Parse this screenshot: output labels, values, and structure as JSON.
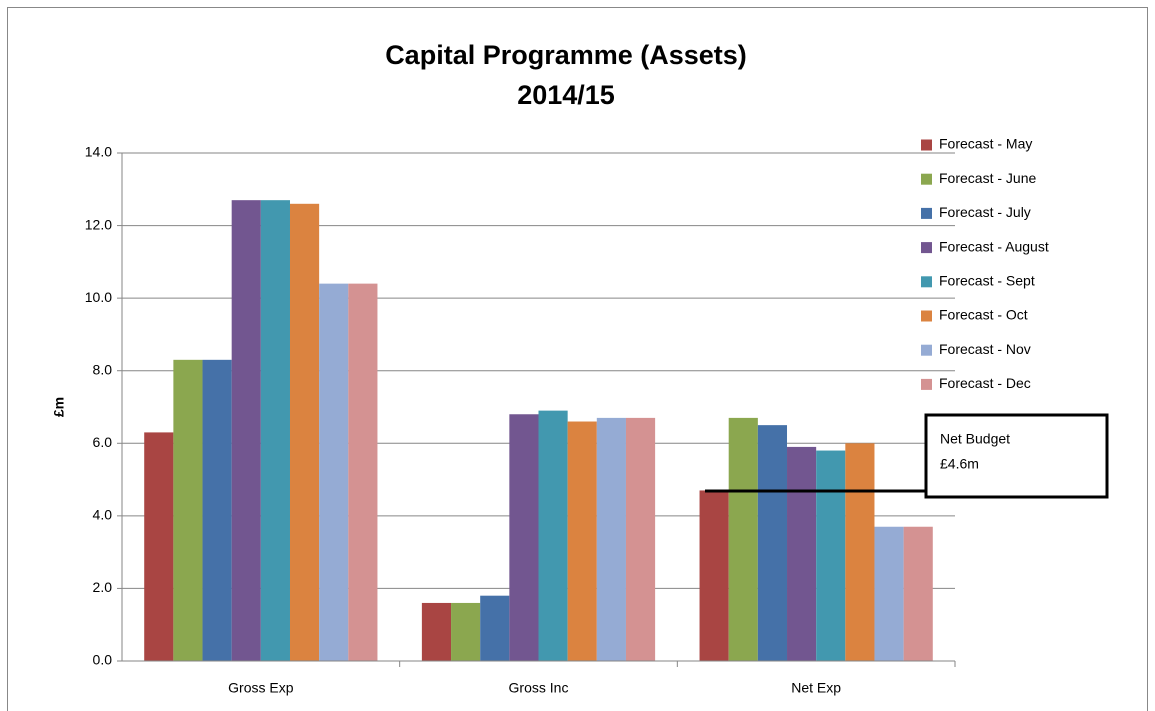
{
  "chart_data": {
    "type": "bar",
    "title": "Capital Programme (Assets)",
    "subtitle": "2014/15",
    "y_label": "£m",
    "annotation": [
      "Net Budget",
      "£4.6m"
    ],
    "categories": [
      "Gross Exp",
      "Gross Inc",
      "Net Exp"
    ],
    "series": [
      {
        "name": "Forecast - May",
        "color": "#a94543",
        "values": [
          6.3,
          1.6,
          4.7
        ]
      },
      {
        "name": "Forecast - June",
        "color": "#8ba74f",
        "values": [
          8.3,
          1.6,
          6.7
        ]
      },
      {
        "name": "Forecast - July",
        "color": "#4571a8",
        "values": [
          8.3,
          1.8,
          6.5
        ]
      },
      {
        "name": "Forecast - August",
        "color": "#725690",
        "values": [
          12.7,
          6.8,
          5.9
        ]
      },
      {
        "name": "Forecast - Sept",
        "color": "#4298af",
        "values": [
          12.7,
          6.9,
          5.8
        ]
      },
      {
        "name": "Forecast - Oct",
        "color": "#db8340",
        "values": [
          12.6,
          6.6,
          6.0
        ]
      },
      {
        "name": "Forecast - Nov",
        "color": "#95abd4",
        "values": [
          10.4,
          6.7,
          3.7
        ]
      },
      {
        "name": "Forecast - Dec",
        "color": "#d49292",
        "values": [
          10.4,
          6.7,
          3.7
        ]
      }
    ],
    "ylim": [
      0,
      14
    ],
    "yticks": [
      {
        "value": 0,
        "label": "0.0"
      },
      {
        "value": 2,
        "label": "2.0"
      },
      {
        "value": 4,
        "label": "4.0"
      },
      {
        "value": 6,
        "label": "6.0"
      },
      {
        "value": 8,
        "label": "8.0"
      },
      {
        "value": 10,
        "label": "10.0"
      },
      {
        "value": 12,
        "label": "12.0"
      },
      {
        "value": 14,
        "label": "14.0"
      }
    ],
    "grid": true,
    "legend": "right"
  }
}
